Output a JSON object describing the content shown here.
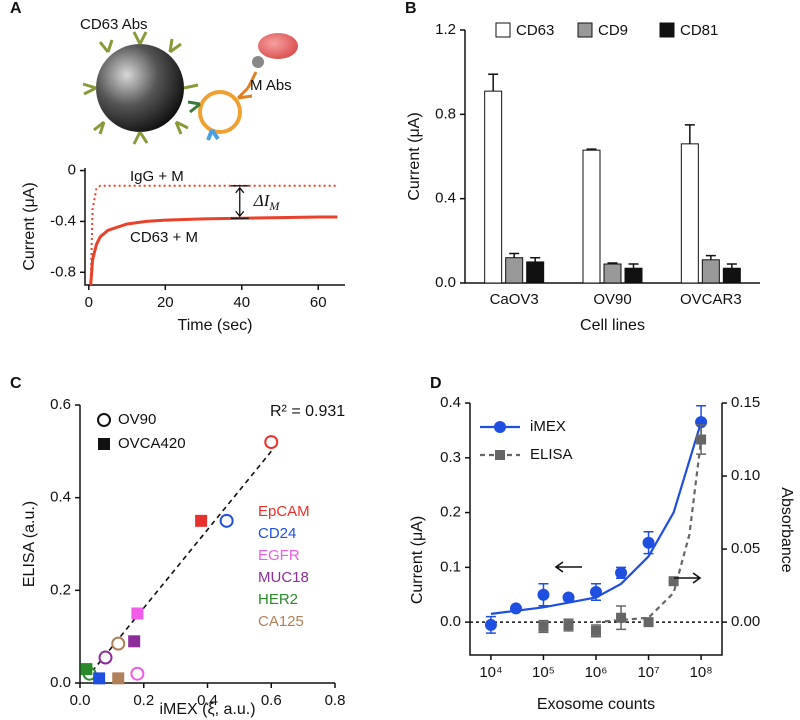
{
  "chart_data": [
    {
      "panel": "A",
      "type": "line",
      "diagram_labels": [
        "CD63 Abs",
        "M Abs"
      ],
      "x_label": "Time (sec)",
      "y_label": "Current (μA)",
      "xlim": [
        -1,
        67
      ],
      "xticks": [
        0,
        20,
        40,
        60
      ],
      "ylim": [
        -0.9,
        0.02
      ],
      "yticks": [
        0,
        -0.4,
        -0.8
      ],
      "annotation": "ΔI",
      "annotation_subscript": "M",
      "series": [
        {
          "name": "IgG + M",
          "color": "#e8412c",
          "style": "dotted",
          "x": [
            0.5,
            1,
            2,
            3,
            5,
            10,
            15,
            20,
            30,
            40,
            50,
            60,
            65
          ],
          "values": [
            -0.9,
            -0.3,
            -0.14,
            -0.12,
            -0.12,
            -0.12,
            -0.12,
            -0.12,
            -0.12,
            -0.12,
            -0.12,
            -0.12,
            -0.12
          ]
        },
        {
          "name": "CD63 + M",
          "color": "#e8412c",
          "style": "solid",
          "x": [
            0.5,
            1,
            2,
            3,
            5,
            10,
            15,
            20,
            30,
            40,
            50,
            60,
            65
          ],
          "values": [
            -0.9,
            -0.7,
            -0.58,
            -0.52,
            -0.47,
            -0.42,
            -0.4,
            -0.39,
            -0.38,
            -0.375,
            -0.37,
            -0.365,
            -0.365
          ]
        }
      ]
    },
    {
      "panel": "B",
      "type": "bar",
      "x_label": "Cell lines",
      "y_label": "Current (μA)",
      "categories": [
        "CaOV3",
        "OV90",
        "OVCAR3"
      ],
      "ylim": [
        0,
        1.2
      ],
      "yticks": [
        {
          "value": 0,
          "label": "0.0"
        },
        0.4,
        0.8,
        1.2
      ],
      "series": [
        {
          "name": "CD63",
          "color": "#ffffff",
          "values": [
            0.91,
            0.63,
            0.66
          ],
          "errors": [
            0.08,
            0.005,
            0.09
          ]
        },
        {
          "name": "CD9",
          "color": "#999999",
          "values": [
            0.12,
            0.09,
            0.11
          ],
          "errors": [
            0.02,
            0.005,
            0.02
          ]
        },
        {
          "name": "CD81",
          "color": "#111111",
          "values": [
            0.1,
            0.07,
            0.07
          ],
          "errors": [
            0.02,
            0.02,
            0.02
          ]
        }
      ]
    },
    {
      "panel": "C",
      "type": "scatter",
      "x_label": "iMEX (ξ, a.u.)",
      "y_label": "ELISA (a.u.)",
      "annotation": "R² = 0.931",
      "xlim": [
        0,
        0.8
      ],
      "xticks": [
        {
          "value": 0,
          "label": "0.0"
        },
        0.2,
        0.4,
        0.6,
        0.8
      ],
      "ylim": [
        0,
        0.6
      ],
      "yticks": [
        {
          "value": 0,
          "label": "0.0"
        },
        0.2,
        0.4,
        0.6
      ],
      "fit": {
        "x": [
          0.02,
          0.6
        ],
        "values": [
          0.01,
          0.5
        ]
      },
      "markers": [
        {
          "name": "EpCAM",
          "color": "#e8312c"
        },
        {
          "name": "CD24",
          "color": "#1f4fe0"
        },
        {
          "name": "EGFR",
          "color": "#f25ce8"
        },
        {
          "name": "MUC18",
          "color": "#8e2d9a"
        },
        {
          "name": "HER2",
          "color": "#2a8a2a"
        },
        {
          "name": "CA125",
          "color": "#b0805a"
        }
      ],
      "series": [
        {
          "name": "OV90",
          "marker": "circle",
          "x": [
            0.6,
            0.46,
            0.18,
            0.08,
            0.03,
            0.12
          ],
          "values": [
            0.52,
            0.35,
            0.02,
            0.055,
            0.02,
            0.085
          ]
        },
        {
          "name": "OVCA420",
          "marker": "square",
          "x": [
            0.38,
            0.06,
            0.18,
            0.17,
            0.02,
            0.12
          ],
          "values": [
            0.35,
            0.01,
            0.15,
            0.09,
            0.03,
            0.01
          ]
        }
      ]
    },
    {
      "panel": "D",
      "type": "line",
      "log_x": true,
      "legend": "upper left",
      "x_label": "Exosome counts",
      "y_label": "Current (μA)",
      "y2_label": "Absorbance",
      "xlim": [
        4000,
        250000000
      ],
      "xticks": [
        {
          "value": 10000,
          "label": "10⁴"
        },
        {
          "value": 100000,
          "label": "10⁵"
        },
        {
          "value": 1000000,
          "label": "10⁶"
        },
        {
          "value": 10000000,
          "label": "10⁷"
        },
        {
          "value": 100000000,
          "label": "10⁸"
        }
      ],
      "ylim": [
        -0.06,
        0.4
      ],
      "yticks": [
        {
          "value": 0,
          "label": "0.0"
        },
        0.1,
        0.2,
        0.3,
        0.4
      ],
      "y2lim": [
        -0.0225,
        0.15
      ],
      "y2ticks": [
        {
          "value": 0,
          "label": "0.00"
        },
        0.05,
        {
          "value": 0.1,
          "label": "0.10"
        },
        0.15
      ],
      "series": [
        {
          "name": "iMEX",
          "color": "#1f4fe0",
          "marker": "circle",
          "x": [
            10000,
            30000,
            100000,
            300000,
            1000000,
            3000000,
            10000000,
            100000000
          ],
          "values": [
            -0.005,
            0.025,
            0.05,
            0.045,
            0.055,
            0.09,
            0.145,
            0.365
          ],
          "errors": [
            0.015,
            0.005,
            0.02,
            0.005,
            0.015,
            0.01,
            0.02,
            0.03
          ],
          "fit": {
            "x": [
              10000,
              100000,
              1000000,
              3000000,
              10000000,
              30000000,
              100000000
            ],
            "values": [
              0.015,
              0.027,
              0.045,
              0.07,
              0.12,
              0.2,
              0.365
            ]
          }
        },
        {
          "name": "ELISA",
          "color": "#666666",
          "marker": "square",
          "axis": "y2",
          "x": [
            100000,
            300000,
            1000000,
            3000000,
            10000000,
            30000000,
            100000000
          ],
          "values": [
            -0.003,
            -0.002,
            -0.006,
            0.003,
            0.0,
            0.028,
            0.125
          ],
          "errors": [
            0.004,
            0.004,
            0.004,
            0.008,
            0.002,
            0.0,
            0.01
          ],
          "fit": {
            "x": [
              1000000,
              10000000,
              30000000,
              60000000,
              100000000
            ],
            "values": [
              0.0,
              0.003,
              0.02,
              0.06,
              0.125
            ]
          }
        }
      ]
    }
  ]
}
